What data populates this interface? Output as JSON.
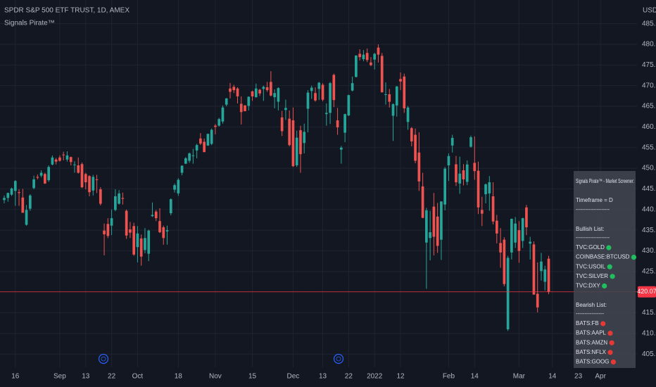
{
  "chart_data": {
    "type": "candlestick",
    "title": "SPDR S&P 500 ETF TRUST, 1D, AMEX",
    "subtitle": "Signals Pirate™",
    "currency": "USD",
    "up_color": "#26a69a",
    "down_color": "#ef5350",
    "grid": true,
    "last_price": 420.07,
    "last_price_color": "#f23645",
    "xlim": [
      -1.14,
      170.85
    ],
    "xticks": [
      {
        "value": 3,
        "label": "16"
      },
      {
        "value": 15,
        "label": "Sep"
      },
      {
        "value": 22,
        "label": "13"
      },
      {
        "value": 29,
        "label": "22"
      },
      {
        "value": 36,
        "label": "Oct"
      },
      {
        "value": 47,
        "label": "18"
      },
      {
        "value": 57,
        "label": "Nov"
      },
      {
        "value": 67,
        "label": "15"
      },
      {
        "value": 78,
        "label": "Dec"
      },
      {
        "value": 86,
        "label": "13"
      },
      {
        "value": 93,
        "label": "22"
      },
      {
        "value": 100,
        "label": "2022"
      },
      {
        "value": 107,
        "label": "12"
      },
      {
        "value": 120,
        "label": "Feb"
      },
      {
        "value": 127,
        "label": "14"
      },
      {
        "value": 139,
        "label": "Mar"
      },
      {
        "value": 148,
        "label": "14"
      },
      {
        "value": 155,
        "label": "23"
      },
      {
        "value": 161,
        "label": "Apr"
      }
    ],
    "ylim": [
      401.8,
      490.73
    ],
    "yticks": [
      {
        "value": 405,
        "label": "405.00"
      },
      {
        "value": 410,
        "label": "410.00"
      },
      {
        "value": 415,
        "label": "415.00"
      },
      {
        "value": 425,
        "label": "425.00"
      },
      {
        "value": 430,
        "label": "430.00"
      },
      {
        "value": 435,
        "label": "435.00"
      },
      {
        "value": 440,
        "label": "440.00"
      },
      {
        "value": 445,
        "label": "445.00"
      },
      {
        "value": 450,
        "label": "450.00"
      },
      {
        "value": 455,
        "label": "455.00"
      },
      {
        "value": 460,
        "label": "460.00"
      },
      {
        "value": 465,
        "label": "465.00"
      },
      {
        "value": 470,
        "label": "470.00"
      },
      {
        "value": 475,
        "label": "475.00"
      },
      {
        "value": 480,
        "label": "480.00"
      },
      {
        "value": 485,
        "label": "485.00"
      }
    ],
    "ohlc": [
      [
        442.3,
        443.4,
        441.5,
        442.8
      ],
      [
        442.8,
        444.1,
        441.9,
        444.0
      ],
      [
        443.6,
        445.3,
        443.3,
        445.1
      ],
      [
        444.5,
        447.1,
        440.9,
        446.9
      ],
      [
        444.2,
        444.9,
        440.9,
        444.0
      ],
      [
        442.9,
        445.0,
        439.3,
        439.2
      ],
      [
        436.3,
        441.1,
        436.1,
        439.9
      ],
      [
        440.2,
        443.7,
        439.7,
        443.4
      ],
      [
        445.2,
        448.2,
        444.9,
        447.3
      ],
      [
        447.9,
        448.5,
        447.3,
        447.7
      ],
      [
        448.2,
        449.5,
        447.8,
        448.9
      ],
      [
        448.6,
        448.9,
        446.2,
        446.3
      ],
      [
        447.1,
        450.7,
        446.7,
        450.3
      ],
      [
        450.9,
        453.1,
        450.7,
        452.6
      ],
      [
        452.1,
        452.5,
        450.9,
        451.6
      ],
      [
        452.6,
        453.1,
        451.6,
        451.8
      ],
      [
        453.3,
        454.0,
        451.9,
        453.2
      ],
      [
        452.1,
        454.1,
        451.6,
        453.1
      ],
      [
        452.7,
        452.8,
        450.7,
        451.5
      ],
      [
        450.9,
        451.7,
        448.9,
        450.9
      ],
      [
        450.7,
        452.6,
        448.7,
        448.9
      ],
      [
        451.0,
        451.4,
        445.2,
        445.4
      ],
      [
        448.6,
        448.9,
        444.9,
        446.6
      ],
      [
        448.1,
        448.3,
        443.2,
        444.2
      ],
      [
        444.6,
        448.4,
        443.4,
        447.9
      ],
      [
        447.3,
        448.4,
        444.0,
        447.2
      ],
      [
        444.9,
        445.4,
        441.0,
        441.4
      ],
      [
        434.9,
        436.6,
        428.9,
        434.0
      ],
      [
        436.5,
        437.9,
        433.1,
        433.6
      ],
      [
        436.1,
        440.0,
        433.8,
        437.9
      ],
      [
        439.9,
        444.9,
        439.6,
        443.2
      ],
      [
        441.4,
        444.7,
        441.2,
        443.9
      ],
      [
        442.8,
        444.1,
        441.2,
        442.6
      ],
      [
        439.7,
        440.0,
        432.9,
        433.7
      ],
      [
        435.2,
        437.0,
        433.1,
        434.4
      ],
      [
        436.0,
        436.8,
        428.8,
        429.1
      ],
      [
        430.9,
        436.0,
        427.2,
        434.2
      ],
      [
        433.0,
        433.96,
        426.4,
        428.6
      ],
      [
        430.2,
        435.5,
        429.4,
        433.1
      ],
      [
        429.3,
        435.1,
        427.5,
        434.9
      ],
      [
        438.4,
        441.7,
        438.2,
        438.7
      ],
      [
        439.5,
        439.9,
        437.2,
        437.9
      ],
      [
        437.2,
        440.3,
        434.3,
        434.5
      ],
      [
        435.7,
        436.1,
        431.5,
        433.1
      ],
      [
        434.7,
        436.1,
        431.5,
        435.0
      ],
      [
        439.1,
        442.7,
        438.6,
        442.5
      ],
      [
        444.8,
        446.3,
        444.1,
        445.9
      ],
      [
        443.9,
        447.6,
        443.3,
        447.2
      ],
      [
        448.9,
        450.7,
        448.3,
        450.6
      ],
      [
        451.1,
        452.7,
        451.0,
        452.4
      ],
      [
        451.8,
        453.8,
        451.3,
        453.6
      ],
      [
        453.1,
        454.7,
        451.1,
        453.1
      ],
      [
        454.3,
        455.9,
        452.4,
        455.6
      ],
      [
        457.2,
        458.5,
        455.6,
        455.96
      ],
      [
        456.4,
        457.2,
        453.9,
        453.9
      ],
      [
        455.5,
        458.4,
        455.4,
        458.3
      ],
      [
        455.9,
        459.6,
        455.6,
        459.3
      ],
      [
        460.3,
        460.7,
        458.2,
        460.0
      ],
      [
        460.3,
        462.2,
        460.1,
        461.9
      ],
      [
        461.3,
        465.2,
        460.8,
        464.7
      ],
      [
        465.4,
        467.0,
        464.99,
        466.9
      ],
      [
        469.3,
        470.65,
        466.9,
        468.5
      ],
      [
        469.7,
        470.2,
        468.2,
        468.9
      ],
      [
        469.3,
        469.6,
        465.7,
        467.4
      ],
      [
        465.6,
        467.4,
        460.6,
        463.6
      ],
      [
        465.2,
        465.3,
        463.8,
        463.8
      ],
      [
        465.1,
        467.4,
        464.0,
        467.3
      ],
      [
        468.6,
        468.8,
        466.3,
        467.4
      ],
      [
        467.2,
        470.5,
        467.1,
        469.3
      ],
      [
        469.0,
        469.2,
        467.5,
        468.1
      ],
      [
        469.2,
        470.0,
        466.3,
        469.7
      ],
      [
        469.6,
        470.9,
        468.5,
        468.9
      ],
      [
        470.9,
        473.5,
        467.4,
        467.6
      ],
      [
        467.2,
        469.1,
        464.5,
        468.2
      ],
      [
        466.1,
        469.6,
        464.0,
        469.4
      ],
      [
        462.3,
        463.9,
        457.8,
        458.97
      ],
      [
        464.1,
        466.6,
        461.7,
        464.6
      ],
      [
        462.0,
        464.0,
        455.3,
        455.6
      ],
      [
        461.6,
        464.7,
        450.3,
        450.5
      ],
      [
        450.7,
        459.1,
        450.3,
        457.4
      ],
      [
        459.2,
        460.3,
        448.9,
        453.4
      ],
      [
        456.1,
        460.8,
        453.6,
        458.8
      ],
      [
        464.4,
        468.9,
        458.7,
        468.3
      ],
      [
        468.7,
        470.0,
        466.8,
        469.5
      ],
      [
        468.2,
        469.6,
        466.1,
        466.4
      ],
      [
        469.2,
        470.9,
        466.5,
        470.7
      ],
      [
        470.2,
        470.6,
        466.2,
        466.6
      ],
      [
        463.1,
        465.7,
        460.3,
        463.4
      ],
      [
        463.4,
        470.9,
        460.7,
        470.6
      ],
      [
        472.6,
        472.9,
        464.8,
        466.5
      ],
      [
        461.6,
        464.6,
        458.1,
        459.9
      ],
      [
        454.5,
        455.4,
        451.1,
        454.98
      ],
      [
        458.6,
        463.2,
        456.3,
        463.1
      ],
      [
        462.8,
        467.8,
        462.6,
        467.7
      ],
      [
        468.8,
        472.2,
        468.6,
        470.6
      ],
      [
        472.1,
        477.3,
        472.0,
        477.3
      ],
      [
        477.7,
        478.8,
        476.1,
        476.9
      ],
      [
        476.4,
        478.6,
        475.9,
        477.5
      ],
      [
        477.9,
        479.0,
        475.7,
        476.2
      ],
      [
        475.6,
        476.9,
        474.7,
        474.96
      ],
      [
        476.3,
        477.9,
        473.9,
        477.7
      ],
      [
        479.2,
        479.98,
        475.6,
        477.5
      ],
      [
        477.2,
        477.9,
        468.3,
        468.4
      ],
      [
        467.9,
        470.8,
        465.4,
        467.9
      ],
      [
        467.9,
        469.2,
        464.7,
        466.1
      ],
      [
        462.7,
        465.7,
        456.6,
        465.5
      ],
      [
        465.2,
        469.9,
        462.5,
        469.8
      ],
      [
        471.6,
        473.2,
        468.9,
        471.0
      ],
      [
        472.2,
        472.9,
        463.4,
        464.5
      ],
      [
        461.2,
        465.1,
        459.3,
        464.7
      ],
      [
        459.7,
        459.96,
        455.3,
        456.5
      ],
      [
        458.1,
        459.6,
        451.2,
        451.8
      ],
      [
        453.8,
        458.7,
        444.5,
        446.8
      ],
      [
        445.6,
        448.9,
        437.9,
        437.98
      ],
      [
        432.0,
        440.4,
        420.8,
        439.8
      ],
      [
        433.1,
        439.7,
        427.7,
        434.5
      ],
      [
        440.7,
        444.0,
        428.9,
        433.4
      ],
      [
        438.3,
        441.6,
        429.5,
        431.2
      ],
      [
        432.7,
        442.0,
        427.8,
        441.95
      ],
      [
        441.2,
        450.3,
        439.8,
        449.9
      ],
      [
        450.7,
        453.6,
        446.9,
        452.95
      ],
      [
        455.5,
        458.1,
        453.8,
        457.35
      ],
      [
        450.95,
        452.97,
        445.7,
        446.6
      ],
      [
        446.3,
        452.8,
        443.8,
        448.7
      ],
      [
        449.5,
        450.99,
        445.85,
        447.3
      ],
      [
        446.7,
        451.9,
        445.9,
        450.9
      ],
      [
        455.2,
        457.9,
        455.0,
        457.5
      ],
      [
        451.3,
        457.7,
        447.2,
        449.3
      ],
      [
        449.4,
        451.6,
        438.9,
        440.5
      ],
      [
        439.9,
        443.1,
        436.0,
        439.0
      ],
      [
        443.7,
        446.3,
        441.5,
        446.1
      ],
      [
        443.9,
        448.1,
        439.7,
        446.6
      ],
      [
        443.2,
        446.6,
        436.4,
        437.1
      ],
      [
        437.3,
        438.7,
        431.8,
        434.2
      ],
      [
        431.9,
        435.5,
        425.9,
        429.6
      ],
      [
        432.7,
        433.3,
        421.4,
        421.95
      ],
      [
        411.0,
        428.8,
        410.6,
        428.3
      ],
      [
        429.6,
        437.8,
        427.9,
        437.75
      ],
      [
        432.0,
        438.2,
        430.7,
        436.6
      ],
      [
        435.0,
        437.2,
        427.1,
        429.98
      ],
      [
        432.4,
        438.0,
        430.7,
        437.9
      ],
      [
        440.5,
        441.1,
        433.8,
        435.7
      ],
      [
        431.75,
        433.4,
        427.9,
        432.2
      ],
      [
        431.55,
        432.3,
        419.4,
        419.4
      ],
      [
        419.6,
        427.2,
        415.1,
        416.3
      ],
      [
        425.1,
        429.5,
        422.8,
        427.4
      ],
      [
        422.5,
        426.4,
        420.4,
        425.5
      ],
      [
        428.1,
        428.8,
        419.5,
        420.07
      ]
    ]
  },
  "screener": {
    "title": "Signals Pirate™ - Market Screener:",
    "timeframe": "Timeframe = D",
    "separator": "---------------------",
    "bullish": {
      "label": "Bullish List:",
      "separator": "---------------------",
      "color": "#1fbf5f",
      "items": [
        "TVC:GOLD",
        "COINBASE:BTCUSD",
        "TVC:USOIL",
        "TVC:SILVER",
        "TVC:DXY"
      ]
    },
    "bearish": {
      "label": "Bearish List:",
      "separator": "----------------",
      "color": "#e53935",
      "items": [
        "BATS:FB",
        "BATS:AAPL",
        "BATS:AMZN",
        "BATS:NFLX",
        "BATS:GOOG"
      ]
    }
  }
}
